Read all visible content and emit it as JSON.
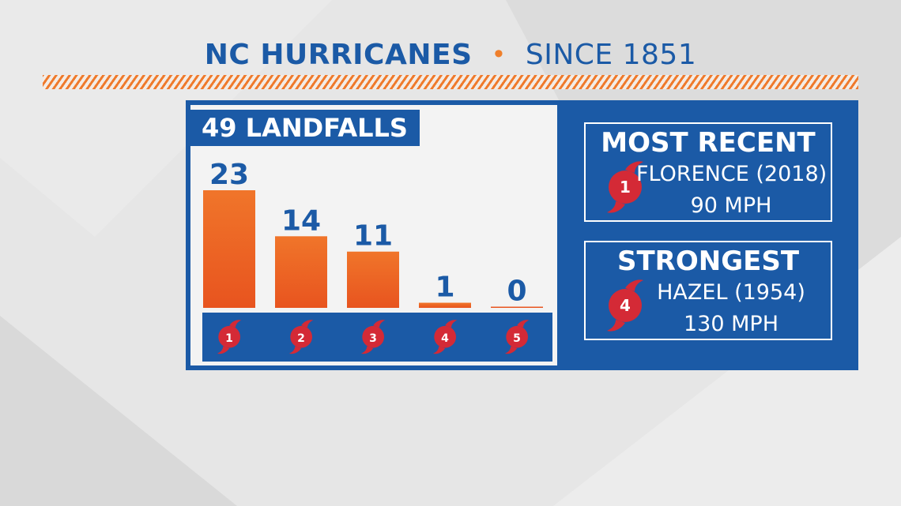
{
  "title": {
    "main": "NC HURRICANES",
    "separator": "•",
    "sub": "SINCE 1851"
  },
  "colors": {
    "blue": "#1b5aa6",
    "orange": "#ef7a2c",
    "red": "#d42a36"
  },
  "icon": "hurricane-symbol-icon",
  "chart_data": {
    "type": "bar",
    "title": "49 LANDFALLS",
    "categories": [
      "1",
      "2",
      "3",
      "4",
      "5"
    ],
    "values": [
      23,
      14,
      11,
      1,
      0
    ],
    "ylim": [
      0,
      23
    ],
    "grid": false,
    "legend": "none"
  },
  "most_recent": {
    "heading": "MOST RECENT",
    "category": "1",
    "name": "FLORENCE (2018)",
    "speed": "90 MPH"
  },
  "strongest": {
    "heading": "STRONGEST",
    "category": "4",
    "name": "HAZEL (1954)",
    "speed": "130 MPH"
  }
}
